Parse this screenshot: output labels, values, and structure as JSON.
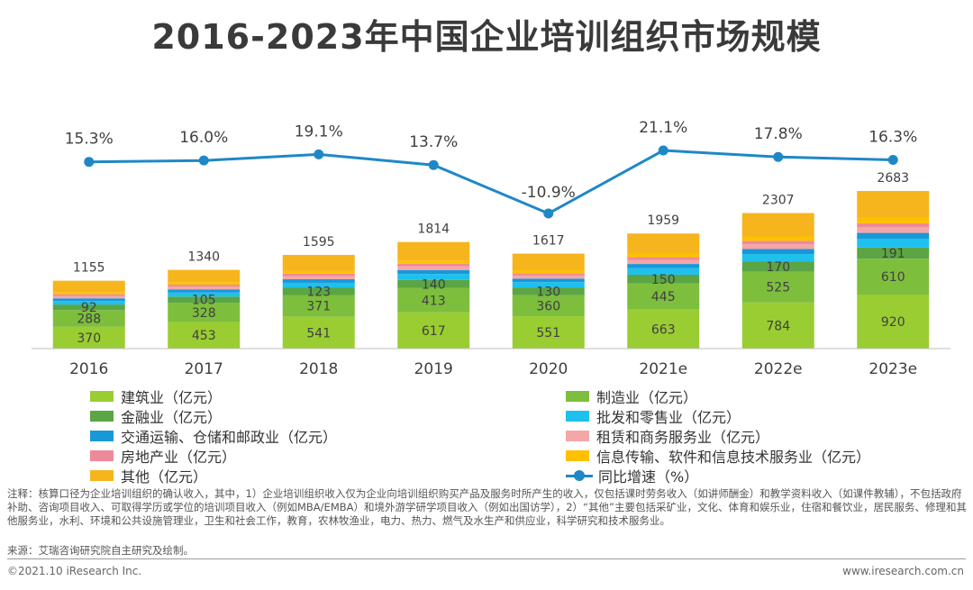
{
  "title": "2016-2023年中国企业培训组织市场规模",
  "chart_data": {
    "type": "bar",
    "stacked": true,
    "secondary_line": true,
    "categories": [
      "2016",
      "2017",
      "2018",
      "2019",
      "2020",
      "2021e",
      "2022e",
      "2023e"
    ],
    "totals": [
      1155,
      1340,
      1595,
      1814,
      1617,
      1959,
      2307,
      2683
    ],
    "series": [
      {
        "name": "建筑业（亿元）",
        "color": "#9ACD32",
        "values": [
          370,
          453,
          541,
          617,
          551,
          663,
          784,
          920
        ],
        "labels": [
          "370",
          "453",
          "541",
          "617",
          "551",
          "663",
          "784",
          "920"
        ]
      },
      {
        "name": "制造业（亿元）",
        "color": "#7DBE3C",
        "values": [
          288,
          328,
          371,
          413,
          360,
          445,
          525,
          610
        ],
        "labels": [
          "288",
          "328",
          "371",
          "413",
          "360",
          "445",
          "525",
          "610"
        ]
      },
      {
        "name": "金融业（亿元）",
        "color": "#5BA545",
        "values": [
          92,
          105,
          123,
          140,
          130,
          150,
          170,
          191
        ],
        "labels": [
          "92",
          "105",
          "123",
          "140",
          "130",
          "150",
          "170",
          "191"
        ]
      },
      {
        "name": "批发和零售业（亿元）",
        "color": "#1EC0EE",
        "values": [
          60,
          70,
          85,
          100,
          90,
          110,
          130,
          150
        ]
      },
      {
        "name": "交通运输、仓储和邮政业（亿元）",
        "color": "#1798D8",
        "values": [
          45,
          52,
          60,
          68,
          60,
          72,
          85,
          98
        ]
      },
      {
        "name": "租赁和商务服务业（亿元）",
        "color": "#F4A7A7",
        "values": [
          40,
          45,
          55,
          60,
          52,
          65,
          80,
          95
        ]
      },
      {
        "name": "房地产业（亿元）",
        "color": "#EE8A98",
        "values": [
          30,
          35,
          40,
          45,
          40,
          50,
          60,
          70
        ]
      },
      {
        "name": "信息传输、软件和信息技术服务业（亿元）",
        "color": "#FFC000",
        "values": [
          35,
          42,
          50,
          58,
          50,
          62,
          75,
          90
        ]
      },
      {
        "name": "其他（亿元）",
        "color": "#F6B51D",
        "values": [
          195,
          210,
          270,
          313,
          284,
          342,
          398,
          459
        ]
      }
    ],
    "line": {
      "name": "同比增速（%）",
      "color": "#1E88C7",
      "values": [
        15.3,
        16.0,
        19.1,
        13.7,
        -10.9,
        21.1,
        17.8,
        16.3
      ],
      "labels": [
        "15.3%",
        "16.0%",
        "19.1%",
        "13.7%",
        "-10.9%",
        "21.1%",
        "17.8%",
        "16.3%"
      ]
    },
    "ylabel": "",
    "xlabel": ""
  },
  "legend": {
    "left": [
      {
        "label": "建筑业（亿元）",
        "color": "#9ACD32"
      },
      {
        "label": "金融业（亿元）",
        "color": "#5BA545"
      },
      {
        "label": "交通运输、仓储和邮政业（亿元）",
        "color": "#1798D8"
      },
      {
        "label": "房地产业（亿元）",
        "color": "#EE8A98"
      },
      {
        "label": "其他（亿元）",
        "color": "#F6B51D"
      }
    ],
    "right": [
      {
        "label": "制造业（亿元）",
        "color": "#7DBE3C"
      },
      {
        "label": "批发和零售业（亿元）",
        "color": "#1EC0EE"
      },
      {
        "label": "租赁和商务服务业（亿元）",
        "color": "#F4A7A7"
      },
      {
        "label": "信息传输、软件和信息技术服务业（亿元）",
        "color": "#FFC000"
      },
      {
        "label": "同比增速（%）",
        "color": "#1E88C7",
        "is_line": true
      }
    ]
  },
  "note": "注释：核算口径为企业培训组织的确认收入，其中，1）企业培训组织收入仅为企业向培训组织购买产品及服务时所产生的收入，仅包括课时劳务收入（如讲师酬金）和教学资料收入（如课件教辅），不包括政府补助、咨询项目收入、可取得学历或学位的培训项目收入（例如MBA/EMBA）和境外游学研学项目收入（例如出国访学），2）“其他”主要包括采矿业，文化、体育和娱乐业，住宿和餐饮业，居民服务、修理和其他服务业，水利、环境和公共设施管理业，卫生和社会工作，教育，农林牧渔业，电力、热力、燃气及水生产和供应业，科学研究和技术服务业。",
  "source": "来源：艾瑞咨询研究院自主研究及绘制。",
  "copyright": "©2021.10 iResearch Inc.",
  "website": "www.iresearch.com.cn"
}
